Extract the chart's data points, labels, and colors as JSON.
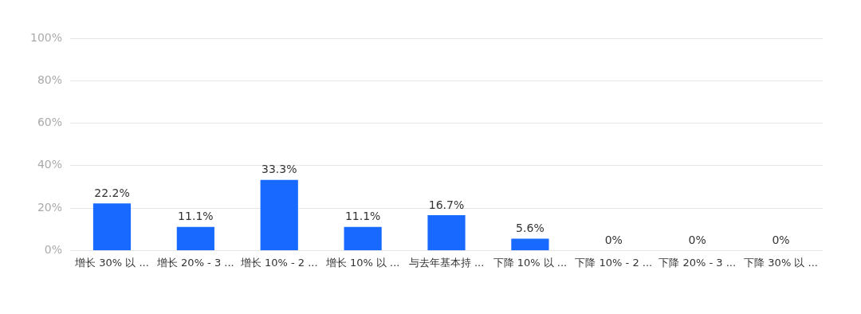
{
  "chart_data": {
    "type": "bar",
    "categories": [
      "增长 30% 以 ...",
      "增长 20% - 3 ...",
      "增长 10% - 2 ...",
      "增长 10% 以 ...",
      "与去年基本持 ...",
      "下降 10% 以 ...",
      "下降 10% - 2 ...",
      "下降 20% - 3 ...",
      "下降 30% 以 ..."
    ],
    "values": [
      22.2,
      11.1,
      33.3,
      11.1,
      16.7,
      5.6,
      0,
      0,
      0
    ],
    "value_labels": [
      "22.2%",
      "11.1%",
      "33.3%",
      "11.1%",
      "16.7%",
      "5.6%",
      "0%",
      "0%",
      "0%"
    ],
    "color": "#1769ff",
    "ylim": [
      0,
      100
    ],
    "yticks": [
      {
        "value": 0,
        "label": "0%"
      },
      {
        "value": 20,
        "label": "20%"
      },
      {
        "value": 40,
        "label": "40%"
      },
      {
        "value": 60,
        "label": "60%"
      },
      {
        "value": 80,
        "label": "80%"
      },
      {
        "value": 100,
        "label": "100%"
      }
    ],
    "grid": "y",
    "legend": false
  }
}
